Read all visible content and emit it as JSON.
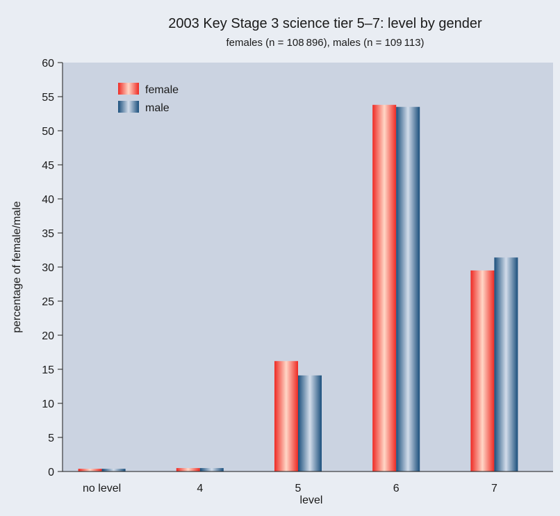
{
  "chart_data": {
    "type": "bar",
    "title": "2003 Key Stage 3 science tier 5–7: level by gender",
    "subtitle": "females (n = 108 896), males (n = 109 113)",
    "xlabel": "level",
    "ylabel": "percentage of female/male",
    "categories": [
      "no level",
      "4",
      "5",
      "6",
      "7"
    ],
    "series": [
      {
        "name": "female",
        "values": [
          0.4,
          0.5,
          16.2,
          53.8,
          29.5
        ]
      },
      {
        "name": "male",
        "values": [
          0.4,
          0.5,
          14.1,
          53.5,
          31.4
        ]
      }
    ],
    "ylim": [
      0,
      60
    ],
    "yticks": [
      0,
      5,
      10,
      15,
      20,
      25,
      30,
      35,
      40,
      45,
      50,
      55,
      60
    ],
    "grid": false,
    "legend": "top-left",
    "colors": {
      "female": "#ee2a24",
      "female_light": "#ffd6c6",
      "male": "#1b4f7c",
      "male_light": "#d2dcea",
      "plot_background": "#cbd3e1",
      "page_background": "#e9edf3"
    }
  }
}
